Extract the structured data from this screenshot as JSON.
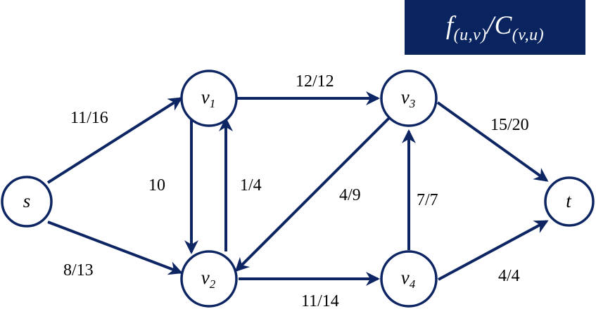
{
  "legend": {
    "f": "f",
    "f_sub": "(u,v)",
    "slash": "/",
    "c": "C",
    "c_sub": "(v,u)"
  },
  "nodes": {
    "s": {
      "main": "s",
      "sub": ""
    },
    "v1": {
      "main": "v",
      "sub": "1"
    },
    "v2": {
      "main": "v",
      "sub": "2"
    },
    "v3": {
      "main": "v",
      "sub": "3"
    },
    "v4": {
      "main": "v",
      "sub": "4"
    },
    "t": {
      "main": "t",
      "sub": ""
    }
  },
  "edges": {
    "s_v1": {
      "from": "s",
      "to": "v1",
      "label": "11/16"
    },
    "s_v2": {
      "from": "s",
      "to": "v2",
      "label": "8/13"
    },
    "v1_v2": {
      "from": "v1",
      "to": "v2",
      "label": "10"
    },
    "v2_v1": {
      "from": "v2",
      "to": "v1",
      "label": "1/4"
    },
    "v1_v3": {
      "from": "v1",
      "to": "v3",
      "label": "12/12"
    },
    "v3_v2": {
      "from": "v3",
      "to": "v2",
      "label": "4/9"
    },
    "v2_v4": {
      "from": "v2",
      "to": "v4",
      "label": "11/14"
    },
    "v4_v3": {
      "from": "v4",
      "to": "v3",
      "label": "7/7"
    },
    "v3_t": {
      "from": "v3",
      "to": "t",
      "label": "15/20"
    },
    "v4_t": {
      "from": "v4",
      "to": "t",
      "label": "4/4"
    }
  }
}
